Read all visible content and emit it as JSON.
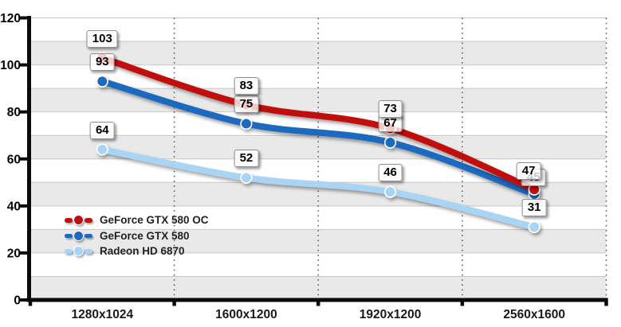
{
  "chart_data": {
    "type": "line",
    "title": "",
    "categories": [
      "1280x1024",
      "1600x1200",
      "1920x1200",
      "2560x1600"
    ],
    "series": [
      {
        "name": "GeForce GTX 580 OC",
        "color": "#c20d11",
        "values": [
          103,
          83,
          73,
          47
        ]
      },
      {
        "name": "GeForce GTX 580",
        "color": "#1c69c0",
        "values": [
          93,
          75,
          67,
          45
        ]
      },
      {
        "name": "Radeon HD 6870",
        "color": "#a9d4f4",
        "values": [
          64,
          52,
          46,
          31
        ]
      }
    ],
    "xlabel": "",
    "ylabel": "",
    "ylim": [
      0,
      120
    ],
    "y_ticks": [
      0,
      20,
      40,
      60,
      80,
      100,
      120
    ],
    "grid": "horizontal stripes every 10 units, dotted vertical separators between categories",
    "legend_position": "inside-bottom-left",
    "data_labels": "each point labeled with its value in a white rounded box"
  },
  "colors": {
    "stripe_band": "#e9e9e9",
    "gridline": "#c7c7c7",
    "axis": "#0a0a0a",
    "dotted_guide": "#5f5f5f",
    "label_box_border": "#8d8d8d",
    "label_text": "#000000",
    "legend_text": "#222222"
  }
}
